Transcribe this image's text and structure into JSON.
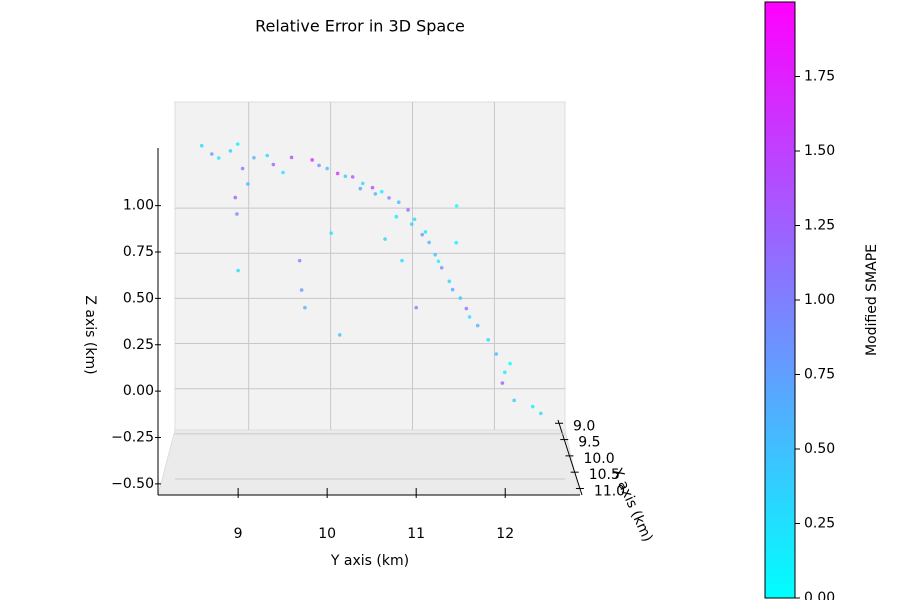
{
  "chart_data": {
    "type": "scatter3d",
    "title": "Relative Error in 3D Space",
    "x_label": "X axis (km)",
    "y_label": "Y axis (km)",
    "z_label": "Z axis (km)",
    "colorbar_label": "Modified SMAPE",
    "colormap": "cool",
    "grid": true,
    "xlim": [
      8.9,
      11.2
    ],
    "ylim": [
      8.1,
      12.84
    ],
    "zlim": [
      -0.56,
      1.37
    ],
    "clim": [
      0,
      2.0
    ],
    "xticks": [
      {
        "value": 9.0,
        "label": "9.0"
      },
      9.5,
      {
        "value": 10.0,
        "label": "10.0"
      },
      10.5,
      {
        "value": 11.0,
        "label": "11.0"
      }
    ],
    "yticks": [
      9,
      10,
      11,
      12
    ],
    "zticks": [
      {
        "value": -0.5,
        "label": "−0.50"
      },
      {
        "value": -0.25,
        "label": "−0.25"
      },
      {
        "value": 0,
        "label": "0.00"
      },
      0.25,
      {
        "value": 0.5,
        "label": "0.50"
      },
      0.75,
      {
        "value": 1.0,
        "label": "1.00"
      }
    ],
    "cticks": [
      {
        "value": 0,
        "label": "0.00"
      },
      0.25,
      {
        "value": 0.5,
        "label": "0.50"
      },
      0.75,
      {
        "value": 1.0,
        "label": "1.00"
      },
      1.25,
      {
        "value": 1.5,
        "label": "1.50"
      },
      1.75
    ],
    "x": [
      9.8,
      10.1,
      9.6,
      10.3,
      9.9,
      10.0,
      10.4,
      9.7,
      10.2,
      9.5,
      10.6,
      9.9,
      10.1,
      10.0,
      9.8,
      10.3,
      10.0,
      9.6,
      10.2,
      10.0,
      9.9,
      10.4,
      10.1,
      9.7,
      10.5,
      10.0,
      10.2,
      9.8,
      10.3,
      10.0,
      9.9,
      10.6,
      10.1,
      9.8,
      10.2,
      10.0,
      9.6,
      10.4,
      10.1,
      9.9,
      10.3,
      10.0,
      9.7,
      10.5,
      10.2,
      10.0,
      10.1,
      9.9,
      10.3,
      10.0,
      9.8,
      10.2,
      10.0,
      10.4,
      9.9,
      10.1,
      10.0,
      10.2,
      10.0,
      10.0,
      9.8,
      10.0
    ],
    "y": [
      8.6,
      8.7,
      8.8,
      8.9,
      9.0,
      9.05,
      8.95,
      9.0,
      9.1,
      9.2,
      9.3,
      9.4,
      9.5,
      9.6,
      9.7,
      9.7,
      9.75,
      9.85,
      9.9,
      10.0,
      10.05,
      10.1,
      10.2,
      10.3,
      10.35,
      10.4,
      10.5,
      10.55,
      10.6,
      10.65,
      10.7,
      10.75,
      10.8,
      10.85,
      10.9,
      10.95,
      11.0,
      11.05,
      11.1,
      11.15,
      11.2,
      11.25,
      11.3,
      11.35,
      11.4,
      11.45,
      11.45,
      11.5,
      11.55,
      11.6,
      11.7,
      11.8,
      11.9,
      11.95,
      12.0,
      12.05,
      12.1,
      12.3,
      12.4,
      11.0,
      10.15,
      9.0
    ],
    "z": [
      1.32,
      1.28,
      1.25,
      1.3,
      1.33,
      1.2,
      1.05,
      0.95,
      1.12,
      1.25,
      1.28,
      1.22,
      1.18,
      1.26,
      0.7,
      0.55,
      0.45,
      1.24,
      1.22,
      1.2,
      0.85,
      1.18,
      1.16,
      1.15,
      1.1,
      1.12,
      1.1,
      1.06,
      1.08,
      0.82,
      1.04,
      0.95,
      1.02,
      0.7,
      0.98,
      0.9,
      0.92,
      0.85,
      0.86,
      0.8,
      0.74,
      0.7,
      0.66,
      0.6,
      0.55,
      0.8,
      1.0,
      0.5,
      0.45,
      0.4,
      0.35,
      0.28,
      0.2,
      0.05,
      0.1,
      0.15,
      -0.05,
      -0.08,
      -0.12,
      0.45,
      0.3,
      0.65
    ],
    "c": [
      0.3,
      0.8,
      0.2,
      0.4,
      0.1,
      1.1,
      1.3,
      0.9,
      0.5,
      0.6,
      0.3,
      1.2,
      0.2,
      1.4,
      1.0,
      0.8,
      0.6,
      1.7,
      0.9,
      0.5,
      0.2,
      1.6,
      0.4,
      1.3,
      0.7,
      0.3,
      1.5,
      0.6,
      0.1,
      0.4,
      1.0,
      0.2,
      0.5,
      0.3,
      1.2,
      0.4,
      0.3,
      0.8,
      0.2,
      0.6,
      0.5,
      0.1,
      0.9,
      0.3,
      0.7,
      0.1,
      0.0,
      0.4,
      1.1,
      0.2,
      0.6,
      0.3,
      0.5,
      1.3,
      0.2,
      0.0,
      0.4,
      0.1,
      0.3,
      1.0,
      0.5,
      0.3
    ]
  }
}
